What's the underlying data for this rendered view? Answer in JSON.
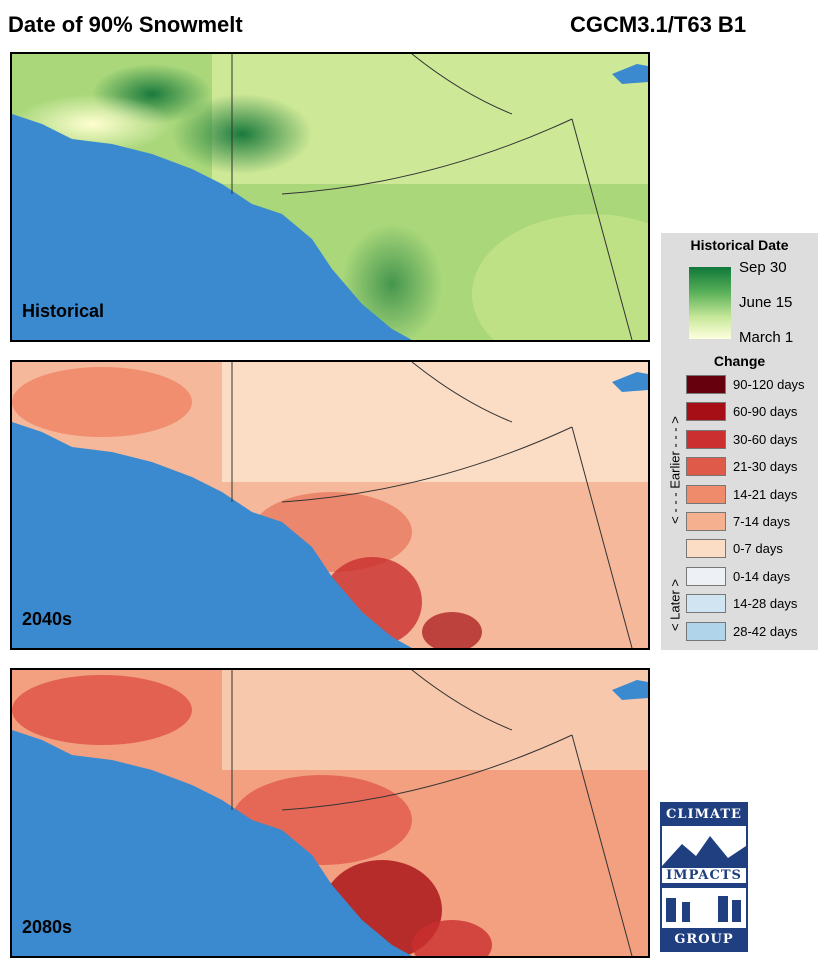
{
  "header": {
    "title": "Date of 90%  Snowmelt",
    "model": "CGCM3.1/T63 B1"
  },
  "panels": [
    {
      "label": "Historical",
      "type": "historical"
    },
    {
      "label": "2040s",
      "type": "change"
    },
    {
      "label": "2080s",
      "type": "change"
    }
  ],
  "legend": {
    "historical_title": "Historical Date",
    "historical_ticks": [
      "Sep 30",
      "June 15",
      "March 1"
    ],
    "change_title": "Change",
    "earlier_axis_label": "< - - - Earlier - - - >",
    "later_axis_label": "< Later >",
    "classes": [
      {
        "label": "90-120 days",
        "color": "#67000d"
      },
      {
        "label": "60-90 days",
        "color": "#a50f15"
      },
      {
        "label": "30-60 days",
        "color": "#cb2f2f"
      },
      {
        "label": "21-30 days",
        "color": "#e05a4a"
      },
      {
        "label": "14-21 days",
        "color": "#ef8a6a"
      },
      {
        "label": "7-14 days",
        "color": "#f5b090"
      },
      {
        "label": "0-7 days",
        "color": "#fbdcc4"
      },
      {
        "label": "0-14 days",
        "color": "#edf0f5"
      },
      {
        "label": "14-28 days",
        "color": "#d0e4f2"
      },
      {
        "label": "28-42 days",
        "color": "#b0d4ea"
      }
    ]
  },
  "colors": {
    "ocean": "#3b8ad0",
    "historical_ramp": [
      "#ffffe0",
      "#c8e89a",
      "#58b058",
      "#10783a"
    ]
  },
  "logo": {
    "line1": "CLIMATE",
    "line2": "IMPACTS",
    "line3": "GROUP"
  }
}
